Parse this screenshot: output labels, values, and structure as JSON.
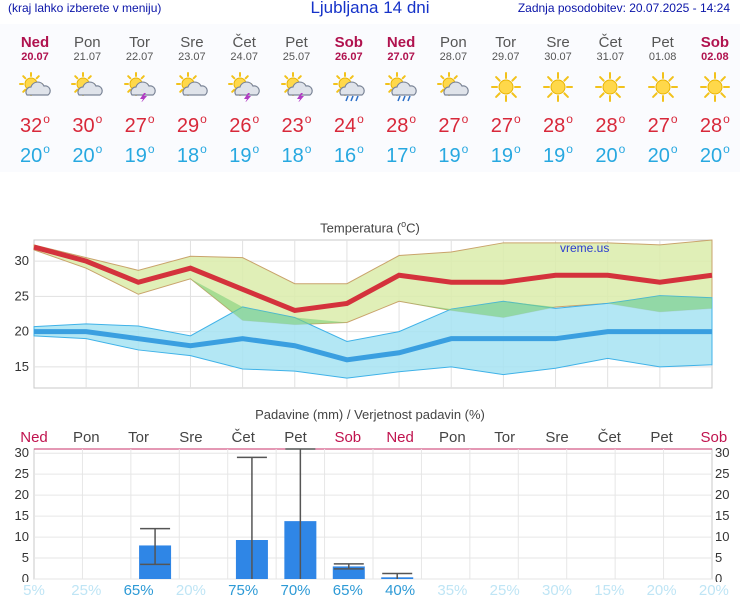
{
  "header": {
    "menu_hint": "(kraj lahko izberete v meniju)",
    "title": "Ljubljana 14 dni",
    "updated": "Zadnja posodobitev: 20.07.2025 - 14:24"
  },
  "days": [
    {
      "name": "Ned",
      "date": "20.07",
      "weekend": true,
      "icon": "sun-cloud-icon",
      "max": "32",
      "min": "20"
    },
    {
      "name": "Pon",
      "date": "21.07",
      "weekend": false,
      "icon": "sun-cloud-icon",
      "max": "30",
      "min": "20"
    },
    {
      "name": "Tor",
      "date": "22.07",
      "weekend": false,
      "icon": "sun-cloud-lightning-icon",
      "max": "27",
      "min": "19"
    },
    {
      "name": "Sre",
      "date": "23.07",
      "weekend": false,
      "icon": "sun-cloud-icon",
      "max": "29",
      "min": "18"
    },
    {
      "name": "Čet",
      "date": "24.07",
      "weekend": false,
      "icon": "sun-cloud-lightning-icon",
      "max": "26",
      "min": "19"
    },
    {
      "name": "Pet",
      "date": "25.07",
      "weekend": false,
      "icon": "sun-cloud-lightning-icon",
      "max": "23",
      "min": "18"
    },
    {
      "name": "Sob",
      "date": "26.07",
      "weekend": true,
      "icon": "sun-cloud-rain-icon",
      "max": "24",
      "min": "16"
    },
    {
      "name": "Ned",
      "date": "27.07",
      "weekend": true,
      "icon": "sun-cloud-rain-icon",
      "max": "28",
      "min": "17"
    },
    {
      "name": "Pon",
      "date": "28.07",
      "weekend": false,
      "icon": "sun-cloud-icon",
      "max": "27",
      "min": "19"
    },
    {
      "name": "Tor",
      "date": "29.07",
      "weekend": false,
      "icon": "sun-icon",
      "max": "27",
      "min": "19"
    },
    {
      "name": "Sre",
      "date": "30.07",
      "weekend": false,
      "icon": "sun-icon",
      "max": "28",
      "min": "19"
    },
    {
      "name": "Čet",
      "date": "31.07",
      "weekend": false,
      "icon": "sun-icon",
      "max": "28",
      "min": "20"
    },
    {
      "name": "Pet",
      "date": "01.08",
      "weekend": false,
      "icon": "sun-icon",
      "max": "27",
      "min": "20"
    },
    {
      "name": "Sob",
      "date": "02.08",
      "weekend": true,
      "icon": "sun-icon",
      "max": "28",
      "min": "20"
    }
  ],
  "degree_mark": "o",
  "colors": {
    "max_temp": "#d8283a",
    "min_temp": "#27a8e0",
    "weekend": "#b0124e",
    "weekday": "#555555",
    "precip_bar": "#2f86e6",
    "max_band": "#dbecaa",
    "min_band": "#a6e3f2"
  },
  "chart_data": [
    {
      "type": "line",
      "title": "Temperatura (°C)",
      "title_text": "Temperatura (",
      "title_unit_sup": "o",
      "title_unit": "C)",
      "watermark": "vreme.us",
      "ylim": [
        12,
        33
      ],
      "yticks": [
        15,
        20,
        25,
        30
      ],
      "grid": true,
      "x": [
        "20.07",
        "21.07",
        "22.07",
        "23.07",
        "24.07",
        "25.07",
        "26.07",
        "27.07",
        "28.07",
        "29.07",
        "30.07",
        "31.07",
        "01.08",
        "02.08"
      ],
      "series": [
        {
          "role": "max",
          "values": [
            32,
            30,
            27,
            29,
            26,
            23,
            24,
            28,
            27,
            27,
            28,
            28,
            27,
            28
          ],
          "band_high": [
            32.3,
            30.5,
            28.7,
            30.7,
            30.5,
            26.8,
            26.8,
            30.8,
            31.3,
            32.6,
            32.6,
            32.6,
            32.3,
            33
          ],
          "band_low": [
            31.6,
            29.0,
            25.3,
            27.5,
            21.6,
            21.0,
            21.3,
            24.3,
            23.0,
            22.0,
            23.5,
            24.0,
            22.8,
            23.3
          ]
        },
        {
          "role": "min",
          "values": [
            20,
            20,
            19,
            18,
            19,
            18,
            16,
            17,
            19,
            19,
            19,
            20,
            20,
            20
          ],
          "band_high": [
            20.7,
            21.1,
            20.8,
            19.4,
            23.5,
            22.0,
            18.6,
            20.0,
            23.2,
            24.3,
            23.3,
            24.0,
            25.1,
            24.8
          ],
          "band_low": [
            19.4,
            19.0,
            17.4,
            16.6,
            14.7,
            14.4,
            13.4,
            14.3,
            15.0,
            13.9,
            14.8,
            16.2,
            15.0,
            15.3
          ]
        }
      ]
    },
    {
      "type": "bar",
      "title": "Padavine (mm) / Verjetnost padavin (%)",
      "ylim": [
        0,
        31
      ],
      "yticks": [
        0,
        5,
        10,
        15,
        20,
        25,
        30
      ],
      "categories": [
        "Ned",
        "Pon",
        "Tor",
        "Sre",
        "Čet",
        "Pet",
        "Sob",
        "Ned",
        "Pon",
        "Tor",
        "Sre",
        "Čet",
        "Pet",
        "Sob"
      ],
      "weekend": [
        true,
        false,
        false,
        false,
        false,
        false,
        true,
        true,
        false,
        false,
        false,
        false,
        false,
        true
      ],
      "values": [
        0,
        0,
        8,
        0,
        9.3,
        13.8,
        3,
        0.4,
        0,
        0,
        0,
        0,
        0,
        0
      ],
      "range_high": [
        0,
        0,
        12,
        0,
        29,
        31,
        3.6,
        1.3,
        0,
        0,
        0,
        0,
        0,
        0
      ],
      "range_low": [
        0,
        0,
        3.5,
        0,
        0,
        0,
        2.4,
        0,
        0,
        0,
        0,
        0,
        0,
        0
      ],
      "probability": [
        "5%",
        "25%",
        "65%",
        "20%",
        "75%",
        "70%",
        "65%",
        "40%",
        "35%",
        "25%",
        "30%",
        "15%",
        "20%",
        "20%"
      ],
      "probability_high": [
        false,
        false,
        true,
        false,
        true,
        true,
        true,
        true,
        false,
        false,
        false,
        false,
        false,
        false
      ]
    }
  ]
}
